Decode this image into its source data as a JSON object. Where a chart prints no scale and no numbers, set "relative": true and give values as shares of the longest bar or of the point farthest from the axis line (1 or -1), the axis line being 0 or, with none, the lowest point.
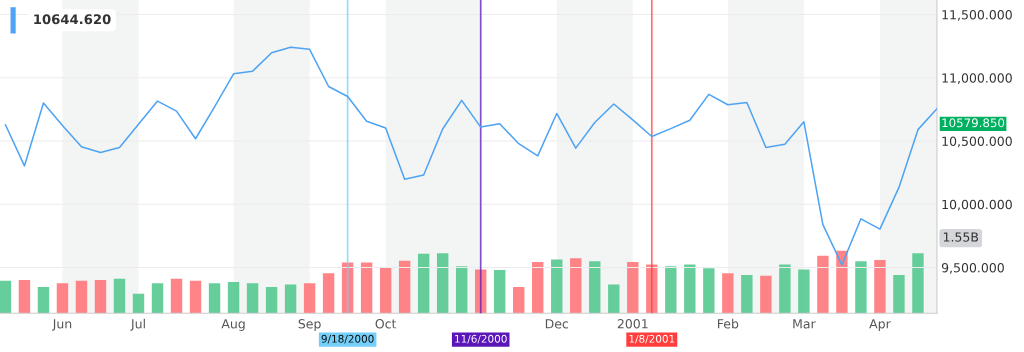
{
  "chart_data": [
    {
      "type": "line",
      "x": [
        "2000-05-15",
        "2000-05-22",
        "2000-05-29",
        "2000-06-05",
        "2000-06-12",
        "2000-06-19",
        "2000-06-26",
        "2000-07-03",
        "2000-07-10",
        "2000-07-17",
        "2000-07-24",
        "2000-07-31",
        "2000-08-07",
        "2000-08-14",
        "2000-08-21",
        "2000-08-28",
        "2000-09-04",
        "2000-09-11",
        "2000-09-18",
        "2000-09-25",
        "2000-10-02",
        "2000-10-09",
        "2000-10-16",
        "2000-10-23",
        "2000-10-30",
        "2000-11-06",
        "2000-11-13",
        "2000-11-20",
        "2000-11-27",
        "2000-12-04",
        "2000-12-11",
        "2000-12-18",
        "2000-12-25",
        "2001-01-01",
        "2001-01-08",
        "2001-01-15",
        "2001-01-22",
        "2001-01-29",
        "2001-02-05",
        "2001-02-12",
        "2001-02-19",
        "2001-02-26",
        "2001-03-05",
        "2001-03-12",
        "2001-03-19",
        "2001-03-26",
        "2001-04-02",
        "2001-04-09",
        "2001-04-16",
        "2001-04-23"
      ],
      "series": [
        {
          "color": "#4ea3f2",
          "values": [
            10629,
            10303,
            10800,
            10623,
            10454,
            10410,
            10449,
            10633,
            10816,
            10736,
            10518,
            10770,
            11031,
            11052,
            11198,
            11241,
            11225,
            10931,
            10852,
            10656,
            10603,
            10198,
            10231,
            10595,
            10821,
            10610,
            10636,
            10479,
            10383,
            10718,
            10444,
            10646,
            10793,
            10667,
            10536,
            10598,
            10664,
            10869,
            10787,
            10805,
            10449,
            10475,
            10652,
            9839,
            9521,
            9885,
            9803,
            10133,
            10590,
            10756
          ]
        }
      ],
      "xlim": [
        "2000-05-13",
        "2001-04-23"
      ],
      "xticks": [
        {
          "value": "2000-06-05",
          "label": "Jun"
        },
        {
          "value": "2000-07-03",
          "label": "Jul"
        },
        {
          "value": "2000-08-07",
          "label": "Aug"
        },
        {
          "value": "2000-09-04",
          "label": "Sep"
        },
        {
          "value": "2000-10-02",
          "label": "Oct"
        },
        {
          "value": "2000-12-04",
          "label": "Dec"
        },
        {
          "value": "2001-01-01",
          "label": "2001"
        },
        {
          "value": "2001-02-05",
          "label": "Feb"
        },
        {
          "value": "2001-03-05",
          "label": "Mar"
        },
        {
          "value": "2001-04-02",
          "label": "Apr"
        }
      ],
      "ylim": [
        9138,
        11615
      ],
      "yticks": [
        {
          "value": 9500,
          "label": "9,500.000"
        },
        {
          "value": 10000,
          "label": "10,000.000"
        },
        {
          "value": 10500,
          "label": "10,500.000"
        },
        {
          "value": 11000,
          "label": "11,000.000"
        },
        {
          "value": 11500,
          "label": "11,500.000"
        }
      ],
      "grid": "y",
      "bands": [
        {
          "axis": "x",
          "from": "2000-06-05",
          "to": "2000-07-03",
          "color": "#f3f4f4"
        },
        {
          "axis": "x",
          "from": "2000-08-07",
          "to": "2000-09-04",
          "color": "#f3f4f4"
        },
        {
          "axis": "x",
          "from": "2000-10-02",
          "to": "2000-11-06",
          "color": "#f3f4f4"
        },
        {
          "axis": "x",
          "from": "2000-12-04",
          "to": "2001-01-01",
          "color": "#f3f4f4"
        },
        {
          "axis": "x",
          "from": "2001-02-05",
          "to": "2001-03-05",
          "color": "#f3f4f4"
        },
        {
          "axis": "x",
          "from": "2001-04-02",
          "to": "2001-04-23",
          "color": "#f3f4f4"
        }
      ],
      "ref_lines": [
        {
          "axis": "x",
          "value": "2000-09-18",
          "label": "9/18/2000",
          "color": "#74d0fb"
        },
        {
          "axis": "x",
          "value": "2000-11-06",
          "label": "11/6/2000",
          "color": "#5a16b8"
        },
        {
          "axis": "x",
          "value": "2001-01-08",
          "label": "1/8/2001",
          "color": "#ff3d3d"
        }
      ],
      "annotations": [
        "10644.620",
        {
          "text": "10579.850",
          "x": "2001-04-23",
          "y": 10579.85
        },
        "1.55B"
      ]
    },
    {
      "type": "bar",
      "relative": true,
      "x": [
        "2000-05-15",
        "2000-05-22",
        "2000-05-29",
        "2000-06-05",
        "2000-06-12",
        "2000-06-19",
        "2000-06-26",
        "2000-07-03",
        "2000-07-10",
        "2000-07-17",
        "2000-07-24",
        "2000-07-31",
        "2000-08-07",
        "2000-08-14",
        "2000-08-21",
        "2000-08-28",
        "2000-09-04",
        "2000-09-11",
        "2000-09-18",
        "2000-09-25",
        "2000-10-02",
        "2000-10-09",
        "2000-10-16",
        "2000-10-23",
        "2000-10-30",
        "2000-11-06",
        "2000-11-13",
        "2000-11-20",
        "2000-11-27",
        "2000-12-04",
        "2000-12-11",
        "2000-12-18",
        "2000-12-25",
        "2001-01-01",
        "2001-01-08",
        "2001-01-15",
        "2001-01-22",
        "2001-01-29",
        "2001-02-05",
        "2001-02-12",
        "2001-02-19",
        "2001-02-26",
        "2001-03-05",
        "2001-03-12",
        "2001-03-19",
        "2001-03-26",
        "2001-04-02",
        "2001-04-09",
        "2001-04-16"
      ],
      "xlim": [
        "2000-05-13",
        "2001-04-23"
      ],
      "values": [
        0.52,
        0.53,
        0.42,
        0.48,
        0.52,
        0.53,
        0.55,
        0.31,
        0.48,
        0.55,
        0.52,
        0.48,
        0.5,
        0.48,
        0.42,
        0.46,
        0.48,
        0.64,
        0.81,
        0.81,
        0.73,
        0.84,
        0.95,
        0.96,
        0.75,
        0.7,
        0.69,
        0.42,
        0.82,
        0.86,
        0.88,
        0.83,
        0.46,
        0.82,
        0.78,
        0.75,
        0.78,
        0.72,
        0.64,
        0.61,
        0.6,
        0.78,
        0.7,
        0.92,
        1,
        0.83,
        0.85,
        0.61,
        0.96
      ],
      "colors": [
        "#4bc58a",
        "#ff6f72",
        "#4bc58a",
        "#ff6f72",
        "#ff6f72",
        "#ff6f72",
        "#4bc58a",
        "#4bc58a",
        "#4bc58a",
        "#ff6f72",
        "#ff6f72",
        "#4bc58a",
        "#4bc58a",
        "#4bc58a",
        "#4bc58a",
        "#4bc58a",
        "#ff6f72",
        "#ff6f72",
        "#ff6f72",
        "#ff6f72",
        "#ff6f72",
        "#ff6f72",
        "#4bc58a",
        "#4bc58a",
        "#4bc58a",
        "#ff6f72",
        "#4bc58a",
        "#ff6f72",
        "#ff6f72",
        "#4bc58a",
        "#ff6f72",
        "#4bc58a",
        "#4bc58a",
        "#ff6f72",
        "#ff6f72",
        "#4bc58a",
        "#4bc58a",
        "#4bc58a",
        "#ff6f72",
        "#4bc58a",
        "#ff6f72",
        "#4bc58a",
        "#4bc58a",
        "#ff6f72",
        "#ff6f72",
        "#4bc58a",
        "#ff6f72",
        "#4bc58a",
        "#4bc58a"
      ]
    }
  ]
}
